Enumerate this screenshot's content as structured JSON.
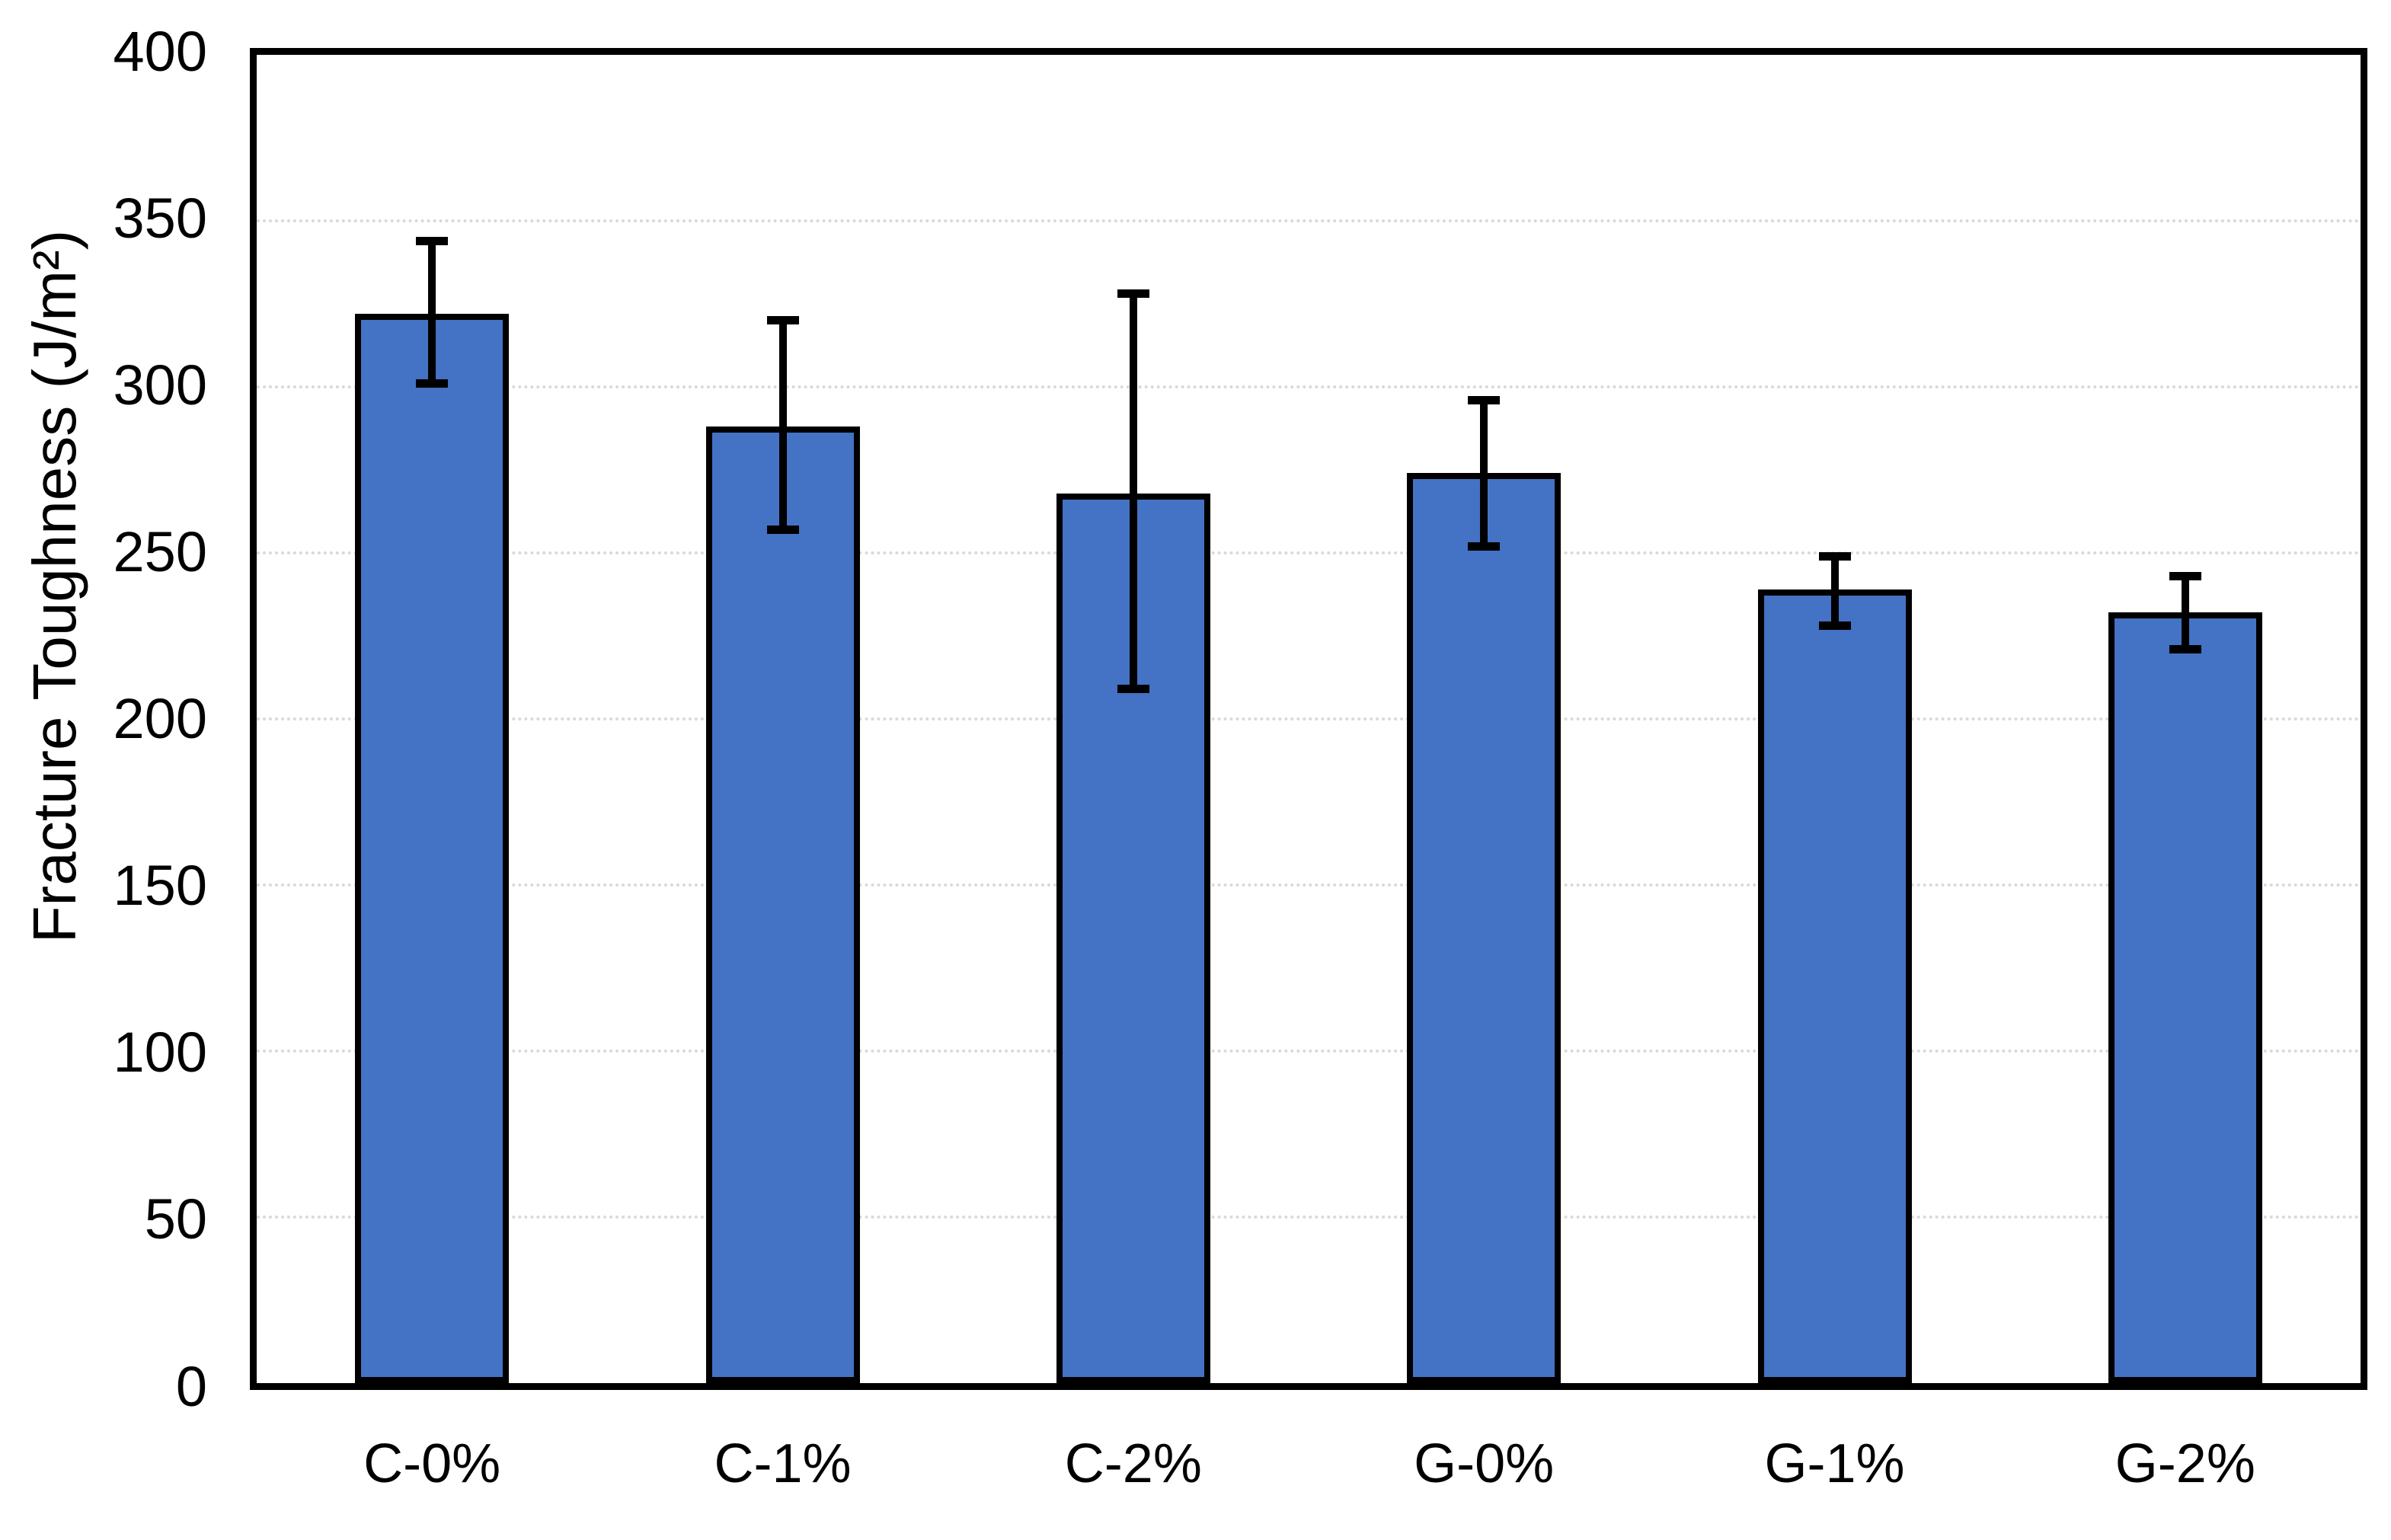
{
  "chart_data": {
    "type": "bar",
    "title": "",
    "categories": [
      "C-0%",
      "C-1%",
      "C-2%",
      "G-0%",
      "G-1%",
      "G-2%"
    ],
    "values": [
      322,
      288,
      268,
      274,
      239,
      232
    ],
    "error_plus": [
      22,
      32,
      60,
      22,
      10,
      11
    ],
    "error_minus": [
      21,
      31,
      59,
      22,
      11,
      11
    ],
    "xlabel": "",
    "ylabel": "Fracture Toughness (J/m²)",
    "ylim": [
      0,
      400
    ],
    "ytick_step": 50,
    "ytick_labels": [
      "0",
      "50",
      "100",
      "150",
      "200",
      "250",
      "300",
      "350",
      "400"
    ],
    "legend": "none",
    "grid": "horizontal-dotted",
    "colors": {
      "bar_fill": "#4472C4",
      "bar_border": "#000000",
      "error_bar": "#000000",
      "gridline": "#D9D9D9",
      "frame": "#000000",
      "background": "#FFFFFF",
      "text": "#000000"
    }
  }
}
